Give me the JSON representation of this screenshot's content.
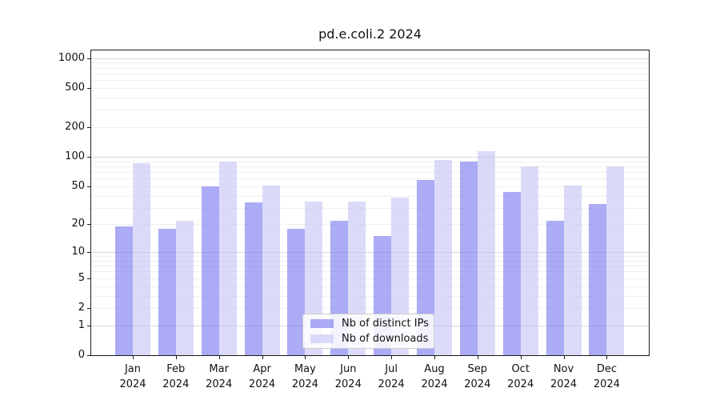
{
  "title": "pd.e.coli.2 2024",
  "chart_data": {
    "type": "bar",
    "title": "pd.e.coli.2 2024",
    "x_year": "2024",
    "categories": [
      "Jan",
      "Feb",
      "Mar",
      "Apr",
      "May",
      "Jun",
      "Jul",
      "Aug",
      "Sep",
      "Oct",
      "Nov",
      "Dec"
    ],
    "series": [
      {
        "name": "Nb of distinct IPs",
        "color": "#7373f0",
        "values": [
          19,
          18,
          50,
          34,
          18,
          22,
          15,
          58,
          90,
          44,
          22,
          33
        ]
      },
      {
        "name": "Nb of downloads",
        "color": "#c3c3f5",
        "values": [
          86,
          22,
          90,
          51,
          35,
          35,
          38,
          93,
          115,
          80,
          51,
          80
        ]
      }
    ],
    "bar_alpha": 0.6,
    "y_scale": "log10(value+1)",
    "yticks": [
      0,
      1,
      2,
      5,
      10,
      20,
      50,
      100,
      200,
      500,
      1000
    ],
    "ylim": [
      0,
      1200
    ],
    "grid": "both",
    "legend_position": "lower center",
    "colors": {
      "major_grid": "#d9d9d9",
      "minor_grid": "#f0f0f0",
      "spine": "#1a1a1a",
      "text": "#111111"
    }
  }
}
